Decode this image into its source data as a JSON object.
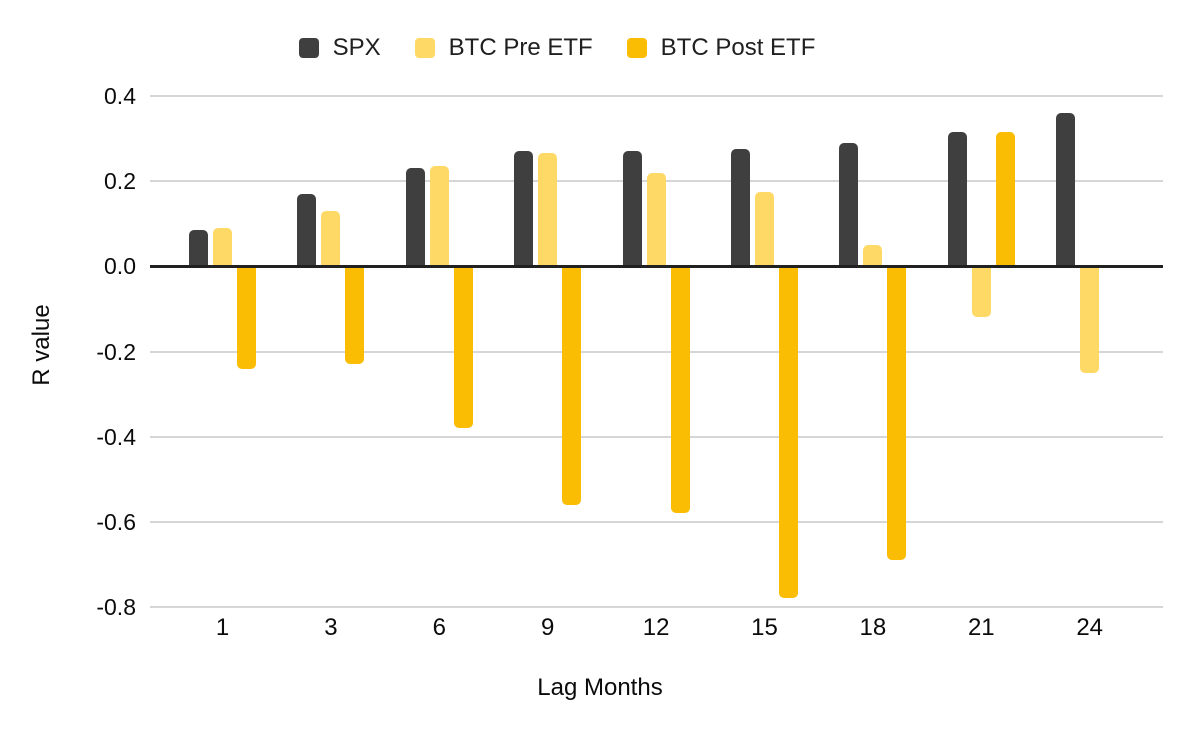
{
  "chart_data": {
    "type": "bar",
    "title": "",
    "xlabel": "Lag Months",
    "ylabel": "R value",
    "categories": [
      "1",
      "3",
      "6",
      "9",
      "12",
      "15",
      "18",
      "21",
      "24"
    ],
    "series": [
      {
        "name": "SPX",
        "color": "#3f3f3f",
        "values": [
          0.085,
          0.17,
          0.23,
          0.27,
          0.27,
          0.275,
          0.29,
          0.315,
          0.36
        ]
      },
      {
        "name": "BTC Pre ETF",
        "color": "#ffd966",
        "values": [
          0.09,
          0.13,
          0.235,
          0.265,
          0.22,
          0.175,
          0.05,
          -0.12,
          -0.25
        ]
      },
      {
        "name": "BTC Post ETF",
        "color": "#fbbc04",
        "values": [
          -0.24,
          -0.23,
          -0.38,
          -0.56,
          -0.58,
          -0.78,
          -0.69,
          0.315,
          null
        ]
      }
    ],
    "ylim": [
      -0.8,
      0.4
    ],
    "yticks": [
      0.4,
      0.2,
      0.0,
      -0.2,
      -0.4,
      -0.6,
      -0.8
    ],
    "ytick_labels": [
      "0.4",
      "0.2",
      "0.0",
      "-0.2",
      "-0.4",
      "-0.6",
      "-0.8"
    ],
    "grid": true,
    "legend_position": "top",
    "axis_color": "#212121",
    "gridline_color": "#d6d6d6",
    "background_color": "#ffffff"
  }
}
